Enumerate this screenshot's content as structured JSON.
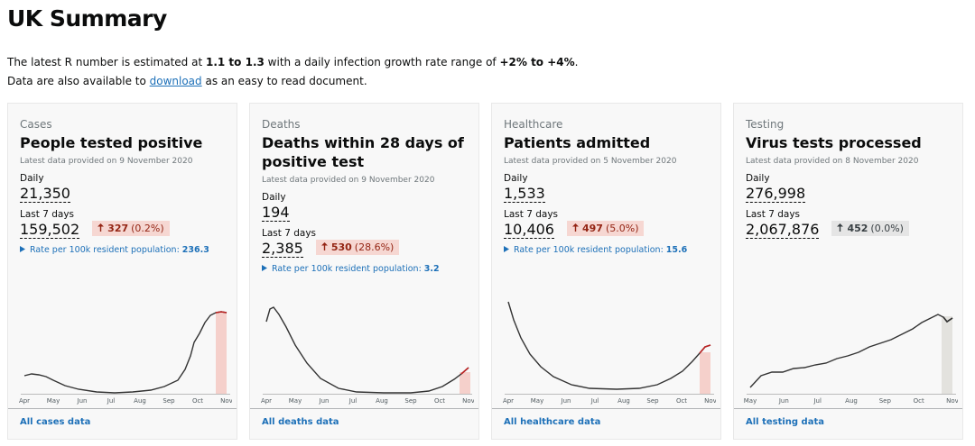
{
  "header": {
    "title": "UK Summary"
  },
  "intro": {
    "line1": {
      "before": "The latest R number is estimated at ",
      "r_range": "1.1 to 1.3",
      "middle": " with a daily infection growth rate range of ",
      "growth_range": "+2% to +4%",
      "after": "."
    },
    "line2": {
      "before": "Data are also available to ",
      "link": "download",
      "after": " as an easy to read document."
    }
  },
  "cards": [
    {
      "category": "Cases",
      "title": "People tested positive",
      "latest": "Latest data provided on 9 November 2020",
      "daily_label": "Daily",
      "daily_value": "21,350",
      "week_label": "Last 7 days",
      "week_value": "159,502",
      "change_value": "327",
      "change_pct": "(0.2%)",
      "change_style": "up",
      "rate_label": "Rate per 100k resident population:",
      "rate_value": "236.3",
      "months": [
        "Apr",
        "May",
        "Jun",
        "Jul",
        "Aug",
        "Sep",
        "Oct",
        "Nov"
      ],
      "footer_link": "All cases data"
    },
    {
      "category": "Deaths",
      "title": "Deaths within 28 days of positive test",
      "latest": "Latest data provided on 9 November 2020",
      "daily_label": "Daily",
      "daily_value": "194",
      "week_label": "Last 7 days",
      "week_value": "2,385",
      "change_value": "530",
      "change_pct": "(28.6%)",
      "change_style": "up",
      "rate_label": "Rate per 100k resident population:",
      "rate_value": "3.2",
      "months": [
        "Apr",
        "May",
        "Jun",
        "Jul",
        "Aug",
        "Sep",
        "Oct",
        "Nov"
      ],
      "footer_link": "All deaths data"
    },
    {
      "category": "Healthcare",
      "title": "Patients admitted",
      "latest": "Latest data provided on 5 November 2020",
      "daily_label": "Daily",
      "daily_value": "1,533",
      "week_label": "Last 7 days",
      "week_value": "10,406",
      "change_value": "497",
      "change_pct": "(5.0%)",
      "change_style": "up",
      "rate_label": "Rate per 100k resident population:",
      "rate_value": "15.6",
      "months": [
        "Apr",
        "May",
        "Jun",
        "Jul",
        "Aug",
        "Sep",
        "Oct",
        "Nov"
      ],
      "footer_link": "All healthcare data"
    },
    {
      "category": "Testing",
      "title": "Virus tests processed",
      "latest": "Latest data provided on 8 November 2020",
      "daily_label": "Daily",
      "daily_value": "276,998",
      "week_label": "Last 7 days",
      "week_value": "2,067,876",
      "change_value": "452",
      "change_pct": "(0.0%)",
      "change_style": "neutral",
      "months": [
        "May",
        "Jun",
        "Jul",
        "Aug",
        "Sep",
        "Oct",
        "Nov"
      ],
      "footer_link": "All testing data"
    }
  ]
}
